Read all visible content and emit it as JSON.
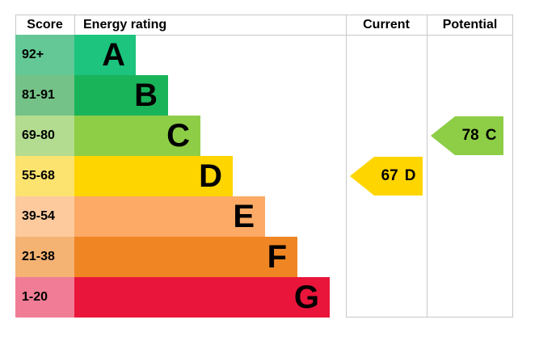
{
  "header": {
    "score": "Score",
    "energy_rating": "Energy rating",
    "current": "Current",
    "potential": "Potential"
  },
  "bands": [
    {
      "score_label": "92+",
      "letter": "A",
      "color": "#1cc47e",
      "tint": "#63c895"
    },
    {
      "score_label": "81-91",
      "letter": "B",
      "color": "#19b459",
      "tint": "#74c287"
    },
    {
      "score_label": "69-80",
      "letter": "C",
      "color": "#8dce46",
      "tint": "#b3dc90"
    },
    {
      "score_label": "55-68",
      "letter": "D",
      "color": "#ffd500",
      "tint": "#fce26e"
    },
    {
      "score_label": "39-54",
      "letter": "E",
      "color": "#fcaa65",
      "tint": "#fcca9d"
    },
    {
      "score_label": "21-38",
      "letter": "F",
      "color": "#ef8523",
      "tint": "#f4b273"
    },
    {
      "score_label": "1-20",
      "letter": "G",
      "color": "#e9153b",
      "tint": "#f07d95"
    }
  ],
  "current_marker": {
    "score": "67",
    "band": "D",
    "band_index": 3,
    "color": "#ffd500"
  },
  "potential_marker": {
    "score": "78",
    "band": "C",
    "band_index": 2,
    "color": "#8dce46"
  },
  "grid_color": "#c8c8c8",
  "chart_data": {
    "type": "bar",
    "orientation": "horizontal",
    "title": "Energy rating",
    "columns": [
      "Score",
      "Energy rating",
      "Current",
      "Potential"
    ],
    "categories": [
      "A",
      "B",
      "C",
      "D",
      "E",
      "F",
      "G"
    ],
    "score_ranges": [
      "92+",
      "81-91",
      "69-80",
      "55-68",
      "39-54",
      "21-38",
      "1-20"
    ],
    "bar_lengths_relative": [
      1,
      2,
      3,
      4,
      5,
      6,
      7
    ],
    "band_colors": [
      "#1cc47e",
      "#19b459",
      "#8dce46",
      "#ffd500",
      "#fcaa65",
      "#ef8523",
      "#e9153b"
    ],
    "current": {
      "score": 67,
      "band": "D"
    },
    "potential": {
      "score": 78,
      "band": "C"
    },
    "grid": true,
    "legend_position": "none"
  }
}
